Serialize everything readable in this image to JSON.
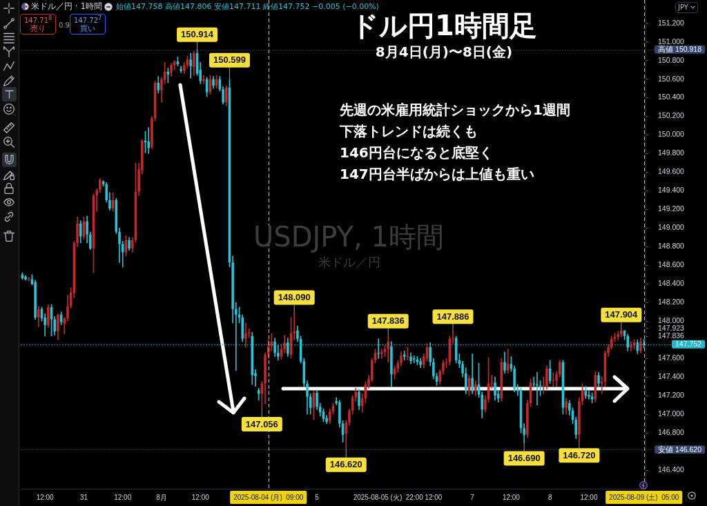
{
  "chart_data": {
    "type": "candlestick",
    "title": "ドル円1時間足",
    "subtitle": "8月4日(月)〜8日(金)",
    "categories": [
      null,
      null,
      null,
      null,
      null,
      null,
      null,
      "12:00",
      null,
      null,
      null,
      null,
      null,
      null,
      null,
      null,
      null,
      null,
      null,
      "31",
      null,
      null,
      null,
      null,
      null,
      null,
      null,
      null,
      null,
      null,
      null,
      "12:00",
      null,
      null,
      null,
      null,
      null,
      null,
      null,
      null,
      null,
      null,
      null,
      "8月",
      null,
      null,
      null,
      null,
      null,
      null,
      null,
      null,
      null,
      null,
      null,
      "12:00",
      null,
      null,
      null,
      null,
      null,
      null,
      null,
      null,
      null,
      null,
      null,
      null,
      null,
      null,
      null,
      null,
      null,
      null,
      null,
      null,
      "2025-08-04 (月)  09:00",
      null,
      null,
      null,
      null,
      null,
      null,
      null,
      null,
      null,
      null,
      null,
      null,
      null,
      null,
      "5",
      null,
      null,
      null,
      null,
      null,
      null,
      null,
      null,
      null,
      null,
      null,
      null,
      null,
      null,
      null,
      null,
      null,
      null,
      null,
      null,
      null,
      "2025-08-05 (火)  22:00",
      null,
      null,
      null,
      null,
      null,
      null,
      null,
      null,
      null,
      null,
      null,
      null,
      null,
      "12:00",
      null,
      null,
      null,
      null,
      null,
      null,
      null,
      null,
      null,
      null,
      null,
      "7",
      null,
      null,
      null,
      null,
      null,
      null,
      null,
      null,
      null,
      null,
      null,
      "12:00",
      null,
      null,
      null,
      null,
      null,
      null,
      null,
      null,
      null,
      null,
      null,
      "8",
      null,
      null,
      null,
      null,
      null,
      null,
      null,
      null,
      null,
      null,
      null,
      "12:00",
      null,
      null,
      null,
      null,
      null,
      null,
      null,
      null,
      null,
      null,
      null,
      null,
      null,
      null,
      null,
      null,
      "2025-08-09 (土)  05:00"
    ],
    "ohlc": [
      [
        148.5,
        148.52,
        148.45,
        148.46
      ],
      [
        148.48,
        148.49,
        148.44,
        148.45
      ],
      [
        148.45,
        148.47,
        148.43,
        148.46
      ],
      [
        148.45,
        148.5,
        148.39,
        148.4
      ],
      [
        148.42,
        148.44,
        148.02,
        148.04
      ],
      [
        148.04,
        148.16,
        147.94,
        148.13
      ],
      [
        148.13,
        148.15,
        148.0,
        148.03
      ],
      [
        148.04,
        148.08,
        147.84,
        147.96
      ],
      [
        147.96,
        148.18,
        147.93,
        148.15
      ],
      [
        148.15,
        148.18,
        147.84,
        148.02
      ],
      [
        148.02,
        148.05,
        147.85,
        147.89
      ],
      [
        147.89,
        148.08,
        147.8,
        148.07
      ],
      [
        148.07,
        148.1,
        147.96,
        147.99
      ],
      [
        147.97,
        148.04,
        147.86,
        148.03
      ],
      [
        148.03,
        148.28,
        148.0,
        148.16
      ],
      [
        148.16,
        148.36,
        148.14,
        148.31
      ],
      [
        148.3,
        148.86,
        148.25,
        148.84
      ],
      [
        148.84,
        149.12,
        148.8,
        149.05
      ],
      [
        149.05,
        149.08,
        148.84,
        148.91
      ],
      [
        148.91,
        149.12,
        148.88,
        149.07
      ],
      [
        149.07,
        149.13,
        148.84,
        148.93
      ],
      [
        148.93,
        148.96,
        148.77,
        148.78
      ],
      [
        148.78,
        149.37,
        148.52,
        149.35
      ],
      [
        149.35,
        149.42,
        149.18,
        149.41
      ],
      [
        149.41,
        149.53,
        149.38,
        149.52
      ],
      [
        149.5,
        149.51,
        149.45,
        149.47
      ],
      [
        149.47,
        149.49,
        149.28,
        149.3
      ],
      [
        149.3,
        149.38,
        149.19,
        149.21
      ],
      [
        149.21,
        149.38,
        149.18,
        149.3
      ],
      [
        149.3,
        149.32,
        148.94,
        148.96
      ],
      [
        148.96,
        149.0,
        148.63,
        148.83
      ],
      [
        148.83,
        148.86,
        148.58,
        148.74
      ],
      [
        148.74,
        148.92,
        148.7,
        148.87
      ],
      [
        148.87,
        148.9,
        148.76,
        148.78
      ],
      [
        148.78,
        148.9,
        148.74,
        148.87
      ],
      [
        148.87,
        149.7,
        148.85,
        149.39
      ],
      [
        149.39,
        149.7,
        149.35,
        149.63
      ],
      [
        149.62,
        149.95,
        149.58,
        149.94
      ],
      [
        149.94,
        150.04,
        149.81,
        149.92
      ],
      [
        149.93,
        150.08,
        149.8,
        149.86
      ],
      [
        149.87,
        150.2,
        149.85,
        150.18
      ],
      [
        150.18,
        150.58,
        150.15,
        150.56
      ],
      [
        150.56,
        150.63,
        150.45,
        150.48
      ],
      [
        150.48,
        150.62,
        150.35,
        150.6
      ],
      [
        150.59,
        150.78,
        150.55,
        150.68
      ],
      [
        150.68,
        150.72,
        150.56,
        150.65
      ],
      [
        150.67,
        150.77,
        150.63,
        150.75
      ],
      [
        150.75,
        150.8,
        150.7,
        150.79
      ],
      [
        150.79,
        150.84,
        150.74,
        150.76
      ],
      [
        150.71,
        150.74,
        150.67,
        150.69
      ],
      [
        150.69,
        150.78,
        150.66,
        150.75
      ],
      [
        150.75,
        150.85,
        150.72,
        150.81
      ],
      [
        150.81,
        150.88,
        150.61,
        150.74
      ],
      [
        150.73,
        150.9,
        150.64,
        150.88
      ],
      [
        150.88,
        150.914,
        150.64,
        150.66
      ],
      [
        150.7,
        150.78,
        150.55,
        150.58
      ],
      [
        150.58,
        150.64,
        150.55,
        150.6
      ],
      [
        150.6,
        150.62,
        150.41,
        150.46
      ],
      [
        150.46,
        150.64,
        150.44,
        150.6
      ],
      [
        150.6,
        150.63,
        150.5,
        150.53
      ],
      [
        150.53,
        150.64,
        150.5,
        150.6
      ],
      [
        150.6,
        150.63,
        150.47,
        150.49
      ],
      [
        150.49,
        150.52,
        150.33,
        150.35
      ],
      [
        150.35,
        150.53,
        150.31,
        150.51
      ],
      [
        150.51,
        150.599,
        148.58,
        148.63
      ],
      [
        148.63,
        148.7,
        147.98,
        148.13
      ],
      [
        148.13,
        148.2,
        147.47,
        148.07
      ],
      [
        148.07,
        148.15,
        147.98,
        148.04
      ],
      [
        148.04,
        148.07,
        147.78,
        147.81
      ],
      [
        147.81,
        147.98,
        147.72,
        147.87
      ],
      [
        147.87,
        147.92,
        147.82,
        147.88
      ],
      [
        147.84,
        147.88,
        147.32,
        147.42
      ],
      [
        147.44,
        147.48,
        147.3,
        147.41
      ],
      [
        147.26,
        147.28,
        147.15,
        147.22
      ],
      [
        147.22,
        147.35,
        147.056,
        147.33
      ],
      [
        147.33,
        147.66,
        147.11,
        147.64
      ],
      [
        147.64,
        147.8,
        147.6,
        147.73
      ],
      [
        147.73,
        147.87,
        147.68,
        147.78
      ],
      [
        147.78,
        147.82,
        147.62,
        147.66
      ],
      [
        147.66,
        147.74,
        147.58,
        147.62
      ],
      [
        147.62,
        147.75,
        147.59,
        147.7
      ],
      [
        147.7,
        147.85,
        147.66,
        147.77
      ],
      [
        147.77,
        147.82,
        147.62,
        147.65
      ],
      [
        147.64,
        148.04,
        147.6,
        147.87
      ],
      [
        147.87,
        148.09,
        147.8,
        147.89
      ],
      [
        147.9,
        147.95,
        147.78,
        147.81
      ],
      [
        147.81,
        147.84,
        147.55,
        147.57
      ],
      [
        147.57,
        147.6,
        147.3,
        147.33
      ],
      [
        147.33,
        147.36,
        147.0,
        147.19
      ],
      [
        147.19,
        147.22,
        147.0,
        147.07
      ],
      [
        147.07,
        147.25,
        146.94,
        147.23
      ],
      [
        147.23,
        147.26,
        147.05,
        147.08
      ],
      [
        147.08,
        147.12,
        146.98,
        147.02
      ],
      [
        147.03,
        147.06,
        146.92,
        146.95
      ],
      [
        146.96,
        146.99,
        146.9,
        146.92
      ],
      [
        146.93,
        147.06,
        146.9,
        147.03
      ],
      [
        147.03,
        147.12,
        147.0,
        147.09
      ],
      [
        147.14,
        147.18,
        147.1,
        147.12
      ],
      [
        147.13,
        147.15,
        146.86,
        146.9
      ],
      [
        146.9,
        146.93,
        146.7,
        146.78
      ],
      [
        146.79,
        146.93,
        146.62,
        146.91
      ],
      [
        146.91,
        147.06,
        146.88,
        147.04
      ],
      [
        147.04,
        147.2,
        147.0,
        147.18
      ],
      [
        147.18,
        147.28,
        147.14,
        147.24
      ],
      [
        147.24,
        147.27,
        147.05,
        147.09
      ],
      [
        147.09,
        147.22,
        147.02,
        147.17
      ],
      [
        147.17,
        147.35,
        147.12,
        147.32
      ],
      [
        147.31,
        147.42,
        147.28,
        147.38
      ],
      [
        147.37,
        147.6,
        147.35,
        147.58
      ],
      [
        147.58,
        147.7,
        147.55,
        147.66
      ],
      [
        147.66,
        147.81,
        147.6,
        147.65
      ],
      [
        147.65,
        147.7,
        147.6,
        147.67
      ],
      [
        147.67,
        147.74,
        147.62,
        147.7
      ],
      [
        147.7,
        147.836,
        147.56,
        147.78
      ],
      [
        147.73,
        147.78,
        147.3,
        147.43
      ],
      [
        147.43,
        147.52,
        147.38,
        147.49
      ],
      [
        147.49,
        147.58,
        147.45,
        147.55
      ],
      [
        147.55,
        147.67,
        147.52,
        147.63
      ],
      [
        147.64,
        147.68,
        147.58,
        147.62
      ],
      [
        147.62,
        147.72,
        147.58,
        147.63
      ],
      [
        147.62,
        147.66,
        147.54,
        147.57
      ],
      [
        147.6,
        147.63,
        147.55,
        147.59
      ],
      [
        147.59,
        147.62,
        147.53,
        147.56
      ],
      [
        147.57,
        147.6,
        147.5,
        147.53
      ],
      [
        147.53,
        147.65,
        147.5,
        147.62
      ],
      [
        147.6,
        147.76,
        147.57,
        147.72
      ],
      [
        147.72,
        147.77,
        147.52,
        147.56
      ],
      [
        147.56,
        147.6,
        147.38,
        147.41
      ],
      [
        147.41,
        147.44,
        147.31,
        147.35
      ],
      [
        147.35,
        147.48,
        147.32,
        147.46
      ],
      [
        147.46,
        147.58,
        147.43,
        147.55
      ],
      [
        147.55,
        147.6,
        147.5,
        147.56
      ],
      [
        147.56,
        147.84,
        147.53,
        147.81
      ],
      [
        147.81,
        147.886,
        147.76,
        147.82
      ],
      [
        147.82,
        147.84,
        147.55,
        147.58
      ],
      [
        147.58,
        147.65,
        147.5,
        147.54
      ],
      [
        147.54,
        147.57,
        147.4,
        147.44
      ],
      [
        147.44,
        147.5,
        147.22,
        147.25
      ],
      [
        147.25,
        147.42,
        147.2,
        147.39
      ],
      [
        147.39,
        147.65,
        147.22,
        147.25
      ],
      [
        147.25,
        147.36,
        147.2,
        147.32
      ],
      [
        147.32,
        147.55,
        147.18,
        147.21
      ],
      [
        147.21,
        147.24,
        146.96,
        147.05
      ],
      [
        147.05,
        147.2,
        147.02,
        147.16
      ],
      [
        147.16,
        147.61,
        147.13,
        147.33
      ],
      [
        147.33,
        147.42,
        147.28,
        147.34
      ],
      [
        147.34,
        147.4,
        147.15,
        147.2
      ],
      [
        147.22,
        147.26,
        147.13,
        147.17
      ],
      [
        147.17,
        147.6,
        147.14,
        147.56
      ],
      [
        147.56,
        147.67,
        147.44,
        147.47
      ],
      [
        147.47,
        147.7,
        147.44,
        147.54
      ],
      [
        147.54,
        147.62,
        147.46,
        147.49
      ],
      [
        147.49,
        147.52,
        147.24,
        147.27
      ],
      [
        147.27,
        147.32,
        147.2,
        147.25
      ],
      [
        147.25,
        147.28,
        146.8,
        146.85
      ],
      [
        146.85,
        146.9,
        146.69,
        146.78
      ],
      [
        146.78,
        147.15,
        146.75,
        147.12
      ],
      [
        147.12,
        147.38,
        147.08,
        147.34
      ],
      [
        147.33,
        147.4,
        147.28,
        147.32
      ],
      [
        147.32,
        147.45,
        147.1,
        147.31
      ],
      [
        147.31,
        147.36,
        147.2,
        147.3
      ],
      [
        147.3,
        147.4,
        147.22,
        147.3
      ],
      [
        147.3,
        147.52,
        147.27,
        147.49
      ],
      [
        147.49,
        147.58,
        147.33,
        147.36
      ],
      [
        147.36,
        147.45,
        147.3,
        147.36
      ],
      [
        147.36,
        147.46,
        147.3,
        147.43
      ],
      [
        147.43,
        147.58,
        147.4,
        147.56
      ],
      [
        147.56,
        147.58,
        147.0,
        147.07
      ],
      [
        147.07,
        147.17,
        147.0,
        147.14
      ],
      [
        147.12,
        147.15,
        146.99,
        147.04
      ],
      [
        147.04,
        147.07,
        146.9,
        146.94
      ],
      [
        146.94,
        146.97,
        146.74,
        146.78
      ],
      [
        146.78,
        147.18,
        146.72,
        147.14
      ],
      [
        147.14,
        147.33,
        147.1,
        147.26
      ],
      [
        147.25,
        147.3,
        147.17,
        147.2
      ],
      [
        147.21,
        147.25,
        147.16,
        147.19
      ],
      [
        147.19,
        147.23,
        147.12,
        147.16
      ],
      [
        147.16,
        147.46,
        147.13,
        147.42
      ],
      [
        147.42,
        147.45,
        147.3,
        147.33
      ],
      [
        147.33,
        147.4,
        147.22,
        147.35
      ],
      [
        147.35,
        147.68,
        147.3,
        147.66
      ],
      [
        147.66,
        147.75,
        147.62,
        147.72
      ],
      [
        147.72,
        147.84,
        147.7,
        147.81
      ],
      [
        147.81,
        147.87,
        147.78,
        147.83
      ],
      [
        147.83,
        147.89,
        147.8,
        147.86
      ],
      [
        147.86,
        147.904,
        147.83,
        147.9
      ],
      [
        147.9,
        147.9,
        147.8,
        147.84
      ],
      [
        147.84,
        147.86,
        147.68,
        147.72
      ],
      [
        147.72,
        147.78,
        147.68,
        147.74
      ],
      [
        147.74,
        147.8,
        147.7,
        147.77
      ],
      [
        147.77,
        147.8,
        147.65,
        147.68
      ],
      [
        147.68,
        147.82,
        147.66,
        147.78
      ],
      [
        147.758,
        147.806,
        147.711,
        147.752
      ]
    ],
    "colors": [
      "#26c6da",
      "#26c6da",
      "#c62828",
      "#26c6da",
      "#26c6da",
      "#c62828",
      "#26c6da",
      "#26c6da",
      "#c62828",
      "#26c6da",
      "#26c6da",
      "#c62828",
      "#26c6da",
      "#c62828",
      "#c62828",
      "#c62828",
      "#c62828",
      "#c62828",
      "#26c6da",
      "#c62828",
      "#26c6da",
      "#26c6da",
      "#c62828",
      "#c62828",
      "#c62828",
      "#26c6da",
      "#26c6da",
      "#26c6da",
      "#c62828",
      "#26c6da",
      "#26c6da",
      "#26c6da",
      "#c62828",
      "#26c6da",
      "#c62828",
      "#c62828",
      "#c62828",
      "#c62828",
      "#26c6da",
      "#26c6da",
      "#c62828",
      "#c62828",
      "#26c6da",
      "#c62828",
      "#c62828",
      "#26c6da",
      "#c62828",
      "#c62828",
      "#26c6da",
      "#26c6da",
      "#c62828",
      "#c62828",
      "#26c6da",
      "#c62828",
      "#26c6da",
      "#26c6da",
      "#c62828",
      "#26c6da",
      "#c62828",
      "#26c6da",
      "#c62828",
      "#26c6da",
      "#26c6da",
      "#c62828",
      "#26c6da",
      "#26c6da",
      "#26c6da",
      "#26c6da",
      "#26c6da",
      "#c62828",
      "#c62828",
      "#26c6da",
      "#26c6da",
      "#26c6da",
      "#c62828",
      "#c62828",
      "#c62828",
      "#c62828",
      "#26c6da",
      "#26c6da",
      "#c62828",
      "#c62828",
      "#26c6da",
      "#c62828",
      "#c62828",
      "#26c6da",
      "#26c6da",
      "#26c6da",
      "#26c6da",
      "#26c6da",
      "#c62828",
      "#26c6da",
      "#26c6da",
      "#26c6da",
      "#26c6da",
      "#c62828",
      "#c62828",
      "#26c6da",
      "#26c6da",
      "#26c6da",
      "#c62828",
      "#c62828",
      "#c62828",
      "#c62828",
      "#26c6da",
      "#c62828",
      "#c62828",
      "#c62828",
      "#c62828",
      "#c62828",
      "#26c6da",
      "#c62828",
      "#c62828",
      "#c62828",
      "#26c6da",
      "#c62828",
      "#c62828",
      "#c62828",
      "#26c6da",
      "#c62828",
      "#26c6da",
      "#26c6da",
      "#26c6da",
      "#26c6da",
      "#c62828",
      "#c62828",
      "#26c6da",
      "#26c6da",
      "#26c6da",
      "#c62828",
      "#c62828",
      "#c62828",
      "#c62828",
      "#c62828",
      "#26c6da",
      "#26c6da",
      "#26c6da",
      "#26c6da",
      "#c62828",
      "#26c6da",
      "#c62828",
      "#26c6da",
      "#26c6da",
      "#c62828",
      "#c62828",
      "#c62828",
      "#26c6da",
      "#26c6da",
      "#c62828",
      "#26c6da",
      "#c62828",
      "#26c6da",
      "#26c6da",
      "#26c6da",
      "#26c6da",
      "#26c6da",
      "#c62828",
      "#c62828",
      "#26c6da",
      "#26c6da",
      "#26c6da",
      "#c62828",
      "#c62828",
      "#26c6da",
      "#c62828",
      "#c62828",
      "#c62828",
      "#26c6da",
      "#c62828",
      "#26c6da",
      "#26c6da",
      "#26c6da",
      "#c62828",
      "#c62828",
      "#26c6da",
      "#26c6da",
      "#26c6da",
      "#c62828",
      "#26c6da",
      "#c62828",
      "#c62828",
      "#c62828",
      "#c62828",
      "#c62828",
      "#c62828",
      "#c62828",
      "#26c6da",
      "#26c6da",
      "#c62828",
      "#c62828",
      "#26c6da",
      "#c62828",
      "#26c6da"
    ],
    "ylim": [
      146.2,
      151.45
    ],
    "yticks": [
      {
        "value": 146.4,
        "label": "146.400"
      },
      {
        "value": 146.8,
        "label": "146.800"
      },
      {
        "value": 147.0,
        "label": "147.000"
      },
      {
        "value": 147.2,
        "label": "147.200"
      },
      {
        "value": 147.4,
        "label": "147.400"
      },
      {
        "value": 147.6,
        "label": "147.600"
      },
      {
        "value": 147.836,
        "label": "147.836"
      },
      {
        "value": 147.923,
        "label": "147.923"
      },
      {
        "value": 148.0,
        "label": "148.000"
      },
      {
        "value": 148.2,
        "label": "148.200"
      },
      {
        "value": 148.4,
        "label": "148.400"
      },
      {
        "value": 148.6,
        "label": "148.600"
      },
      {
        "value": 148.8,
        "label": "148.800"
      },
      {
        "value": 149.0,
        "label": "149.000"
      },
      {
        "value": 149.2,
        "label": "149.200"
      },
      {
        "value": 149.4,
        "label": "149.400"
      },
      {
        "value": 149.6,
        "label": "149.600"
      },
      {
        "value": 149.8,
        "label": "149.800"
      },
      {
        "value": 150.0,
        "label": "150.000"
      },
      {
        "value": 150.2,
        "label": "150.200"
      },
      {
        "value": 150.4,
        "label": "150.400"
      },
      {
        "value": 150.6,
        "label": "150.600"
      },
      {
        "value": 150.8,
        "label": "150.800"
      },
      {
        "value": 151.0,
        "label": "151.000"
      },
      {
        "value": 151.2,
        "label": "151.200"
      }
    ],
    "ref_lines": [
      {
        "axis": "y",
        "value": 150.918,
        "label": "高値 150.918",
        "color": "#34466b",
        "line_style": "dotted"
      },
      {
        "axis": "y",
        "value": 146.62,
        "label": "安値 146.620",
        "color": "#34466b",
        "line_style": "dotted"
      },
      {
        "axis": "y",
        "value": 147.752,
        "label": "147.752",
        "color": "#22b8cf",
        "line_style": "dotted"
      },
      {
        "axis": "x",
        "value": "2025-08-04 (月)  09:00",
        "color": "#f0d30c",
        "line_style": "dashed"
      },
      {
        "axis": "x",
        "value": "2025-08-09 (土)  05:00",
        "color": "#f0d30c",
        "line_style": "dashed"
      }
    ],
    "annotations": [
      "米ドル／円 · 1時間",
      "始値147.758 高値147.806 安値147.711 終値147.752 −0.005 (−0.00%)",
      "147.71$^{8}$",
      "売り",
      "0.9",
      "147.72$^{7}$",
      "買い",
      "先週の米雇用統計ショックから1週間",
      "下落トレンドは続くも",
      "146円台になると底堅く",
      "147円台半ばからは上値も重い",
      "USDJPY, 1時間",
      "米ドル／円",
      "JPY",
      {
        "text": "150.914",
        "y": 150.914
      },
      {
        "text": "150.599",
        "y": 150.599
      },
      {
        "text": "147.056",
        "y": 147.056
      },
      {
        "text": "148.090",
        "y": 148.09
      },
      {
        "text": "146.620",
        "y": 146.62
      },
      {
        "text": "147.836",
        "y": 147.836
      },
      {
        "text": "147.886",
        "y": 147.886
      },
      {
        "text": "146.690",
        "y": 146.69
      },
      {
        "text": "146.720",
        "y": 146.72
      },
      {
        "text": "147.904",
        "y": 147.904
      }
    ]
  }
}
